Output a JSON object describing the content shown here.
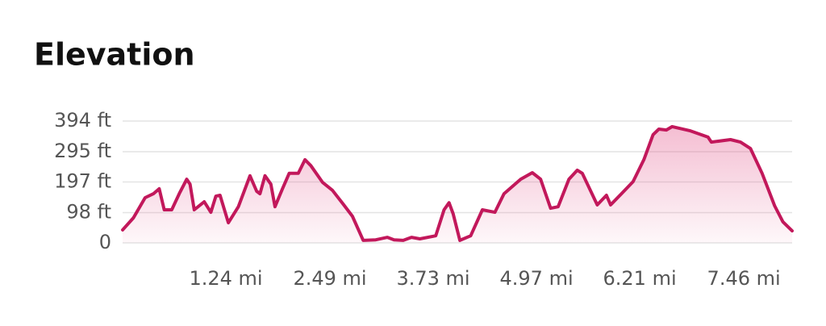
{
  "chart_data": {
    "type": "area",
    "title": "Elevation",
    "color": "#c2185b",
    "grid": true,
    "xlim": [
      0,
      8.04
    ],
    "xticks": [
      {
        "value": 1.24,
        "label": "1.24 mi"
      },
      {
        "value": 2.49,
        "label": "2.49 mi"
      },
      {
        "value": 3.73,
        "label": "3.73 mi"
      },
      {
        "value": 4.97,
        "label": "4.97 mi"
      },
      {
        "value": 6.21,
        "label": "6.21 mi"
      },
      {
        "value": 7.46,
        "label": "7.46 mi"
      }
    ],
    "ylim": [
      0,
      394
    ],
    "yticks": [
      0,
      {
        "value": 98,
        "label": "98 ft"
      },
      {
        "value": 197,
        "label": "197 ft"
      },
      {
        "value": 295,
        "label": "295 ft"
      },
      {
        "value": 394,
        "label": "394 ft"
      }
    ],
    "x": [
      0,
      0.13,
      0.27,
      0.37,
      0.44,
      0.5,
      0.59,
      0.68,
      0.77,
      0.81,
      0.86,
      0.98,
      1.06,
      1.12,
      1.17,
      1.27,
      1.39,
      1.53,
      1.61,
      1.65,
      1.71,
      1.78,
      1.83,
      1.92,
      2.0,
      2.11,
      2.19,
      2.26,
      2.4,
      2.52,
      2.65,
      2.76,
      2.89,
      3.04,
      3.18,
      3.26,
      3.37,
      3.47,
      3.57,
      3.76,
      3.86,
      3.92,
      3.97,
      4.05,
      4.18,
      4.32,
      4.47,
      4.58,
      4.78,
      4.92,
      5.02,
      5.14,
      5.23,
      5.36,
      5.46,
      5.52,
      5.7,
      5.81,
      5.86,
      5.99,
      6.13,
      6.26,
      6.37,
      6.44,
      6.53,
      6.6,
      6.81,
      7.03,
      7.07,
      7.3,
      7.42,
      7.54,
      7.68,
      7.83,
      7.93,
      8.04
    ],
    "values": [
      42,
      81,
      146,
      159,
      175,
      107,
      107,
      159,
      206,
      190,
      107,
      133,
      99,
      151,
      154,
      65,
      117,
      217,
      167,
      159,
      217,
      190,
      117,
      175,
      225,
      225,
      269,
      250,
      196,
      170,
      125,
      86,
      8,
      10,
      18,
      10,
      8,
      18,
      13,
      23,
      107,
      130,
      94,
      8,
      23,
      107,
      99,
      159,
      206,
      227,
      206,
      112,
      117,
      206,
      235,
      225,
      123,
      154,
      123,
      159,
      198,
      269,
      350,
      368,
      365,
      376,
      363,
      342,
      326,
      334,
      326,
      305,
      225,
      120,
      68,
      39
    ]
  }
}
